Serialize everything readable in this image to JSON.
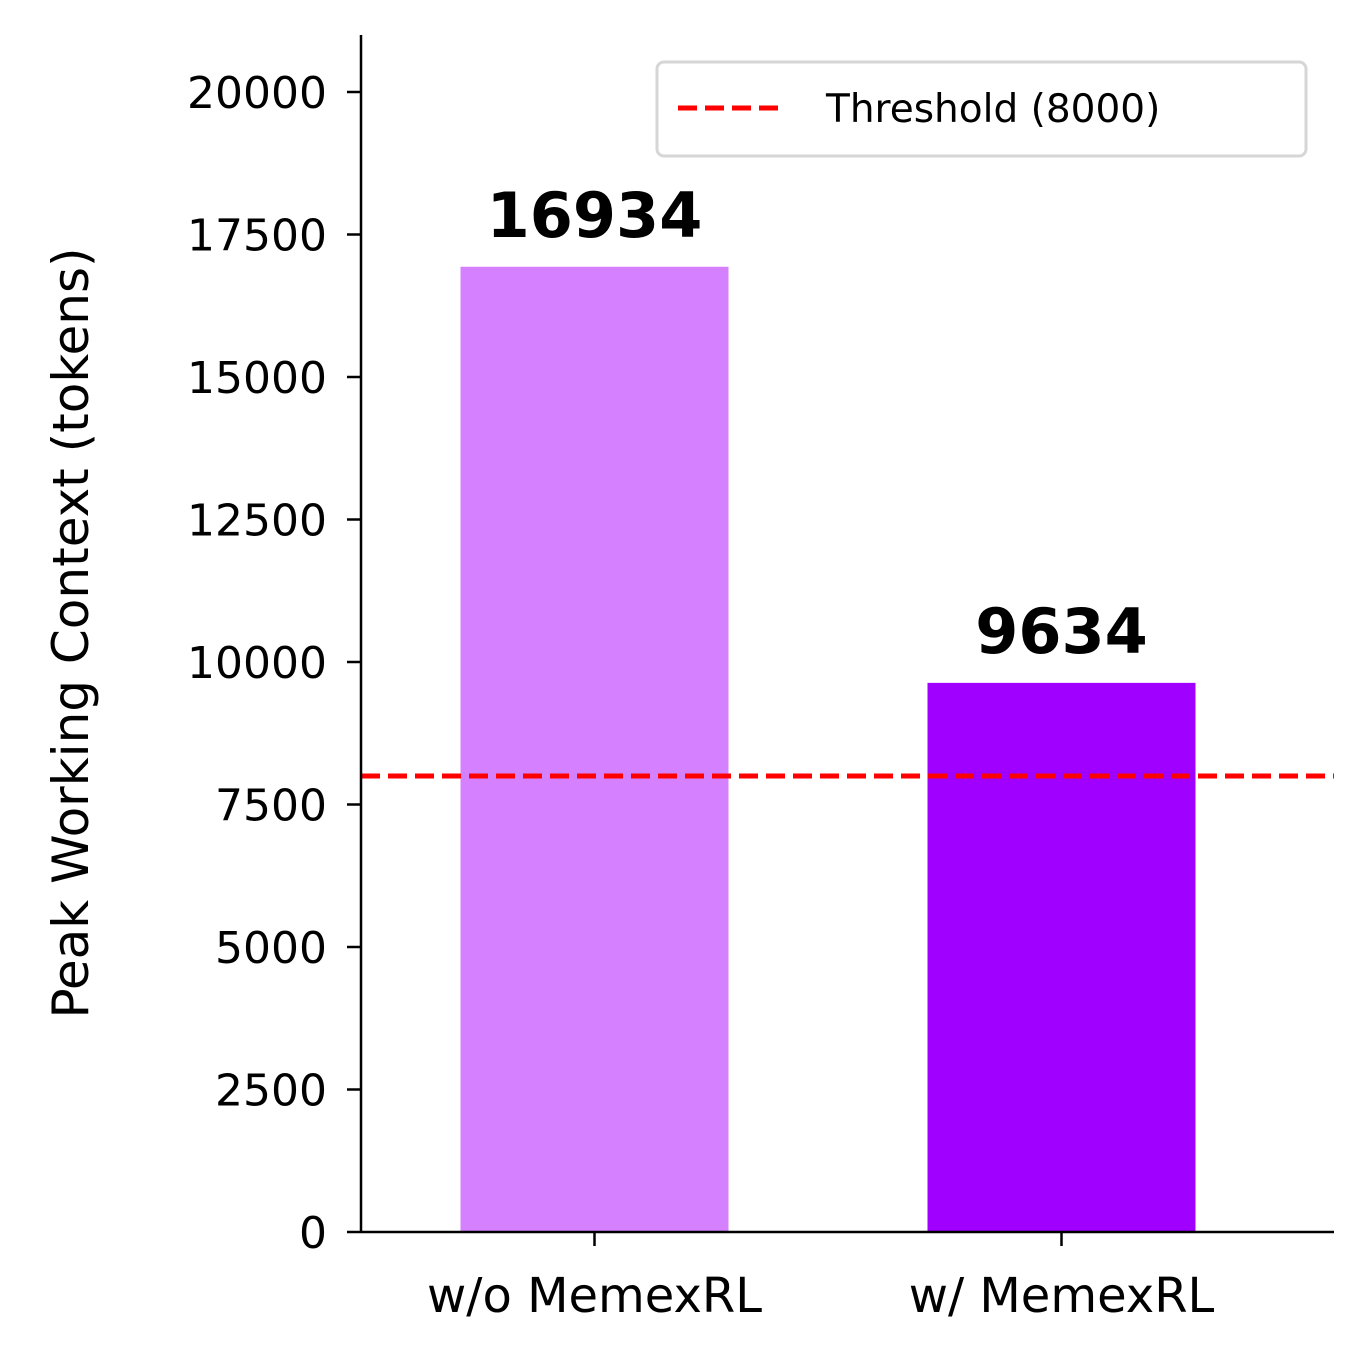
{
  "chart_data": {
    "type": "bar",
    "y_label": "Peak Working Context (tokens)",
    "categories": [
      "w/o MemexRL",
      "w/ MemexRL"
    ],
    "values": [
      16934,
      9634
    ],
    "colors": [
      "#d580ff",
      "#9f00ff"
    ],
    "ylim": [
      0,
      21000
    ],
    "yticks": [
      0,
      2500,
      5000,
      7500,
      10000,
      12500,
      15000,
      17500,
      20000
    ],
    "threshold": {
      "value": 8000,
      "label": "Threshold (8000)",
      "color": "#ff0000",
      "style": "dashed"
    },
    "legend": "upper right",
    "grid": false
  }
}
